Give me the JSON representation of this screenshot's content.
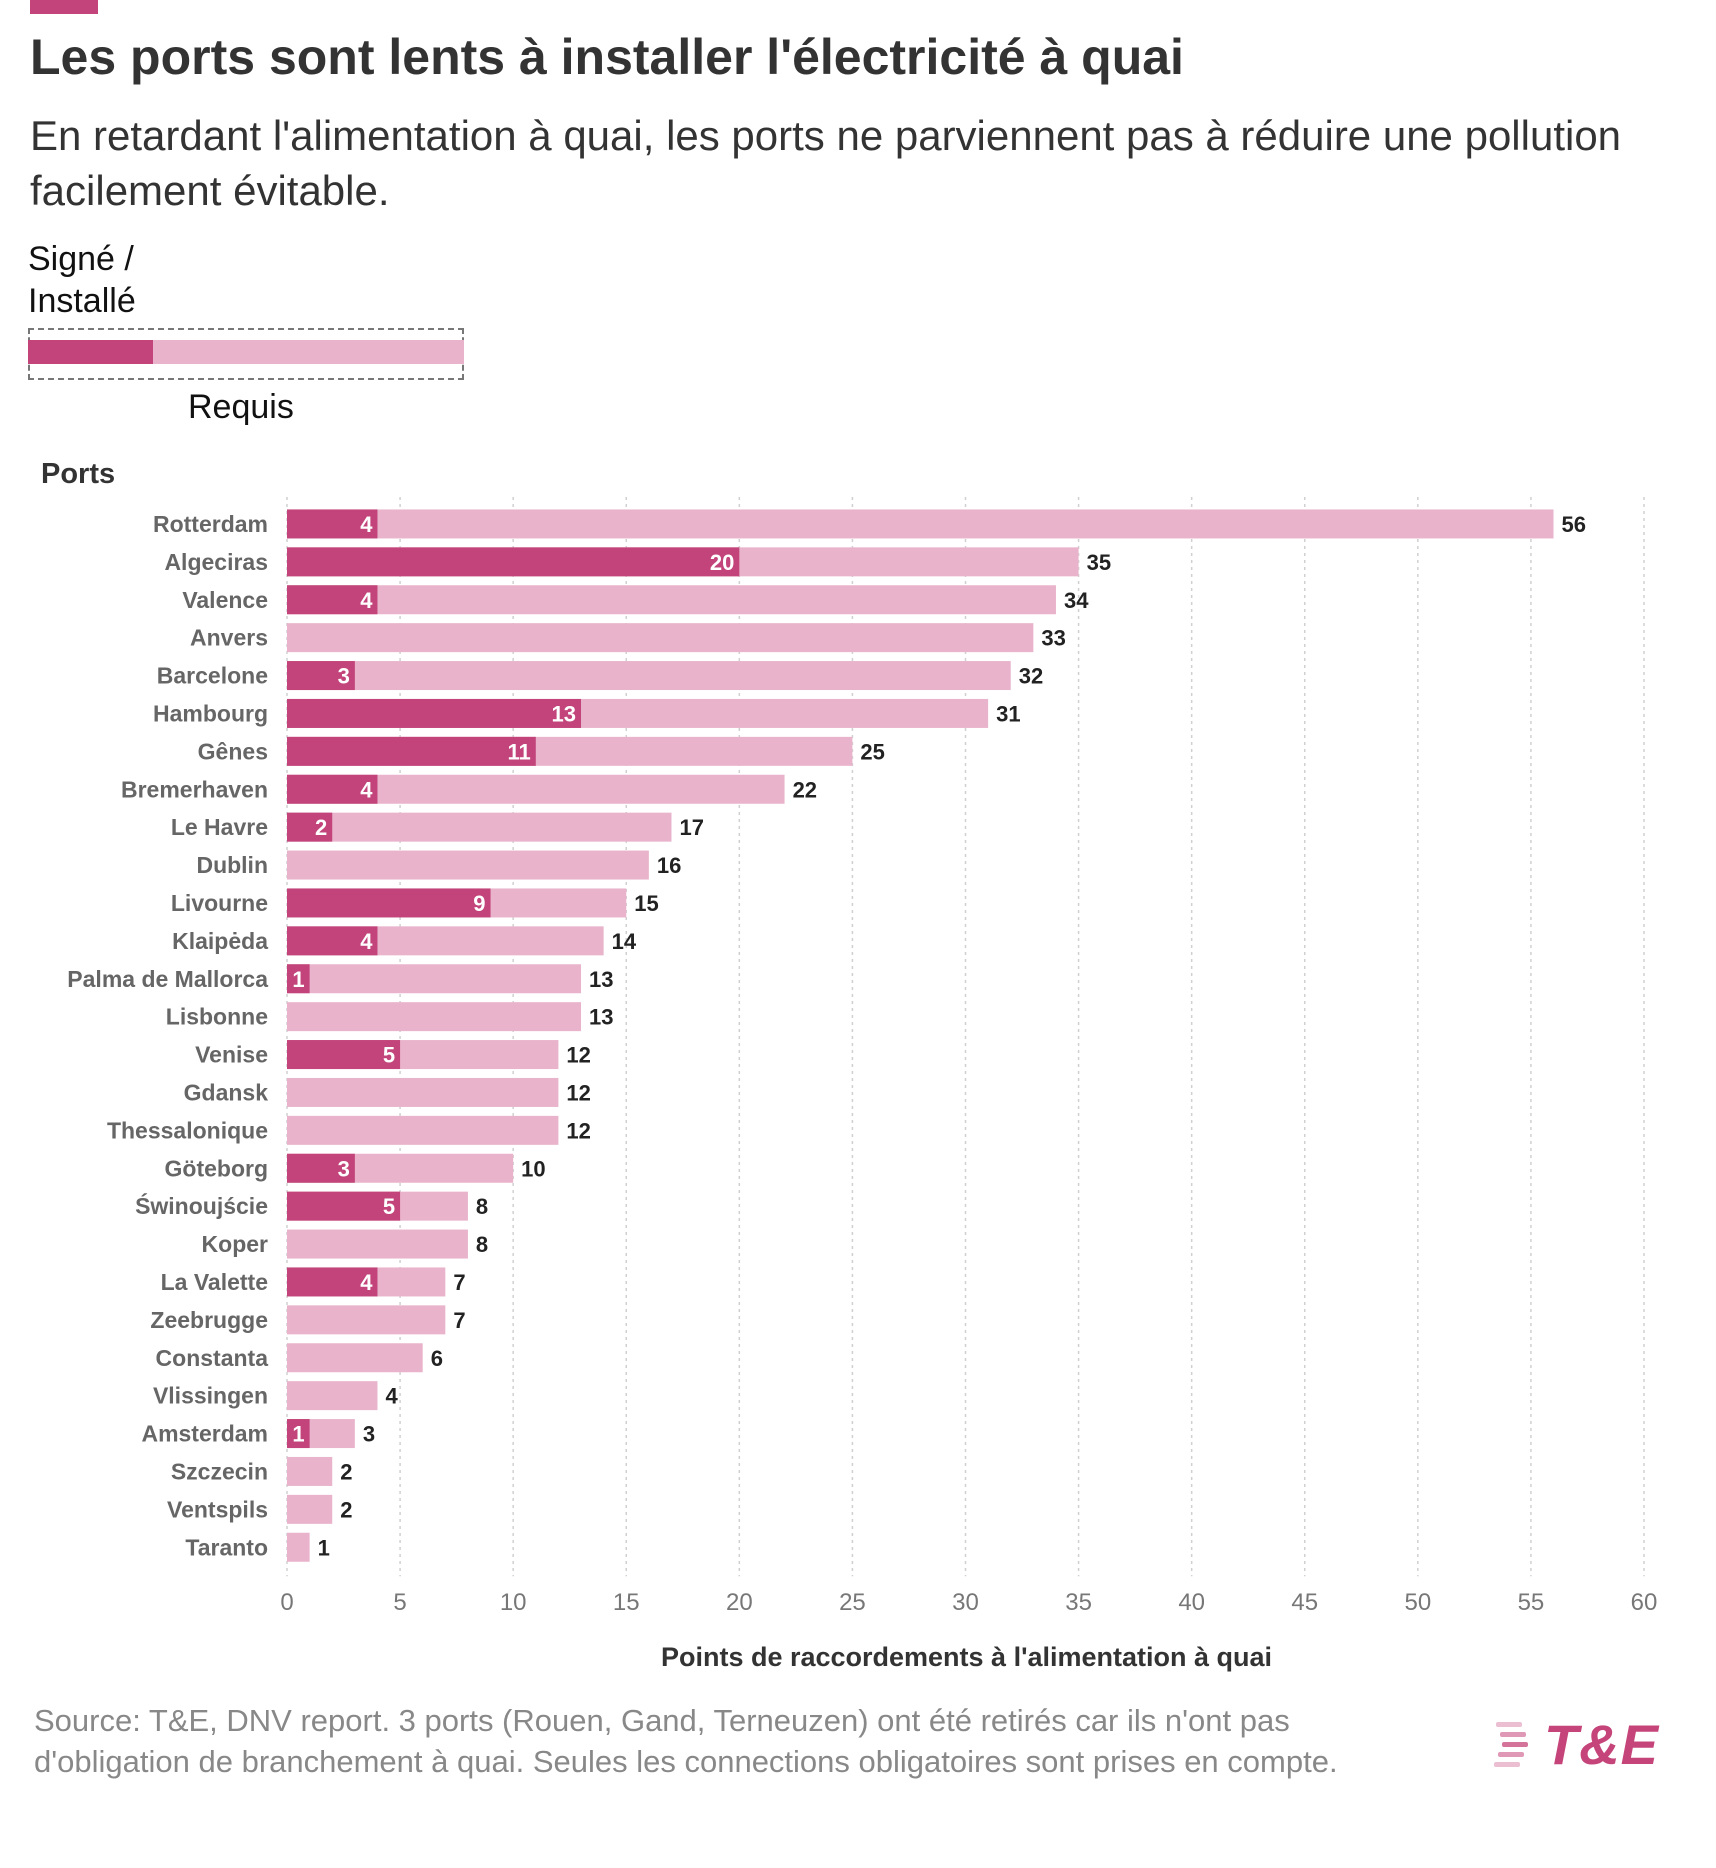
{
  "colors": {
    "installed": "#c2447a",
    "required": "#e9b4cb",
    "text_dark": "#333333",
    "text_muted": "#888888",
    "brand": "#c5457a"
  },
  "header": {
    "title": "Les ports sont lents à installer l'électricité à quai",
    "subtitle": "En retardant l'alimentation à quai, les ports ne parviennent pas à réduire une pollution facilement évitable."
  },
  "legend": {
    "signed_installed": "Signé / Installé",
    "required": "Requis"
  },
  "footer": {
    "source": "Source: T&E, DNV report. 3 ports (Rouen, Gand, Terneuzen) ont été retirés car ils n'ont pas d'obligation de branchement à quai. Seules les connections obligatoires sont prises en compte.",
    "logo_text": "T&E"
  },
  "chart_data": {
    "type": "bar",
    "orientation": "horizontal",
    "categories_title": "Ports",
    "xlabel": "Points de raccordements à l'alimentation à quai",
    "xlim": [
      0,
      60
    ],
    "xticks": [
      0,
      5,
      10,
      15,
      20,
      25,
      30,
      35,
      40,
      45,
      50,
      55,
      60
    ],
    "grid": "vertical dashed",
    "categories": [
      "Rotterdam",
      "Algeciras",
      "Valence",
      "Anvers",
      "Barcelone",
      "Hambourg",
      "Gênes",
      "Bremerhaven",
      "Le Havre",
      "Dublin",
      "Livourne",
      "Klaipėda",
      "Palma de Mallorca",
      "Lisbonne",
      "Venise",
      "Gdansk",
      "Thessalonique",
      "Göteborg",
      "Świnoujście",
      "Koper",
      "La Valette",
      "Zeebrugge",
      "Constanta",
      "Vlissingen",
      "Amsterdam",
      "Szczecin",
      "Ventspils",
      "Taranto"
    ],
    "series": [
      {
        "name": "Signé / Installé",
        "values": [
          4,
          20,
          4,
          0,
          3,
          13,
          11,
          4,
          2,
          0,
          9,
          4,
          1,
          0,
          5,
          0,
          0,
          3,
          5,
          0,
          4,
          0,
          0,
          0,
          1,
          0,
          0,
          0
        ]
      },
      {
        "name": "Requis",
        "values": [
          56,
          35,
          34,
          33,
          32,
          31,
          25,
          22,
          17,
          16,
          15,
          14,
          13,
          13,
          12,
          12,
          12,
          10,
          8,
          8,
          7,
          7,
          6,
          4,
          3,
          2,
          2,
          1
        ]
      }
    ]
  }
}
